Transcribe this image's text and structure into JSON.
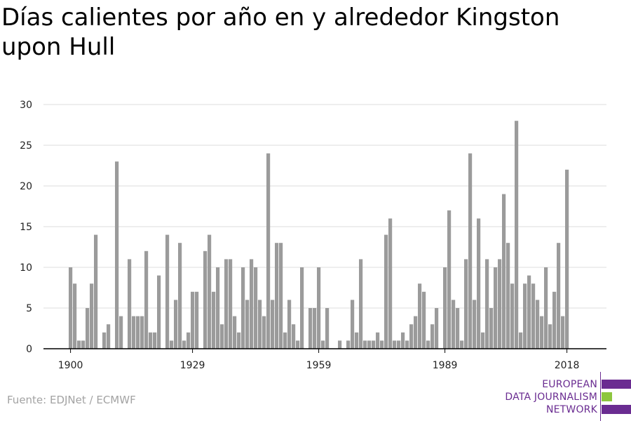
{
  "title": "Días calientes por año en y alrededor Kingston upon Hull",
  "source": "Fuente: EDJNet / ECMWF",
  "logo": {
    "lines": [
      "EUROPEAN",
      "DATA JOURNALISM",
      "NETWORK"
    ],
    "colors": {
      "purple": "#6a2c91",
      "green": "#8dc63f"
    }
  },
  "colors": {
    "bar": "#9b9b9b",
    "grid": "#dddddd",
    "axis": "#000000"
  },
  "chart_data": {
    "type": "bar",
    "title": "Días calientes por año en y alrededor Kingston upon Hull",
    "xlabel": "",
    "ylabel": "",
    "ylim": [
      0,
      30
    ],
    "yticks": [
      0,
      5,
      10,
      15,
      20,
      25,
      30
    ],
    "xticks": [
      1900,
      1929,
      1959,
      1989,
      2018
    ],
    "grid": true,
    "x": [
      1900,
      1901,
      1902,
      1903,
      1904,
      1905,
      1906,
      1907,
      1908,
      1909,
      1910,
      1911,
      1912,
      1913,
      1914,
      1915,
      1916,
      1917,
      1918,
      1919,
      1920,
      1921,
      1922,
      1923,
      1924,
      1925,
      1926,
      1927,
      1928,
      1929,
      1930,
      1931,
      1932,
      1933,
      1934,
      1935,
      1936,
      1937,
      1938,
      1939,
      1940,
      1941,
      1942,
      1943,
      1944,
      1945,
      1946,
      1947,
      1948,
      1949,
      1950,
      1951,
      1952,
      1953,
      1954,
      1955,
      1956,
      1957,
      1958,
      1959,
      1960,
      1961,
      1962,
      1963,
      1964,
      1965,
      1966,
      1967,
      1968,
      1969,
      1970,
      1971,
      1972,
      1973,
      1974,
      1975,
      1976,
      1977,
      1978,
      1979,
      1980,
      1981,
      1982,
      1983,
      1984,
      1985,
      1986,
      1987,
      1988,
      1989,
      1990,
      1991,
      1992,
      1993,
      1994,
      1995,
      1996,
      1997,
      1998,
      1999,
      2000,
      2001,
      2002,
      2003,
      2004,
      2005,
      2006,
      2007,
      2008,
      2009,
      2010,
      2011,
      2012,
      2013,
      2014,
      2015,
      2016,
      2017,
      2018
    ],
    "values": [
      10,
      8,
      1,
      1,
      5,
      8,
      14,
      0,
      2,
      3,
      0,
      23,
      4,
      0,
      11,
      4,
      4,
      4,
      12,
      2,
      2,
      9,
      0,
      14,
      1,
      6,
      13,
      1,
      2,
      7,
      7,
      0,
      12,
      14,
      7,
      10,
      3,
      11,
      11,
      4,
      2,
      10,
      6,
      11,
      10,
      6,
      4,
      24,
      6,
      13,
      13,
      2,
      6,
      3,
      1,
      10,
      0,
      5,
      5,
      10,
      1,
      5,
      0,
      0,
      1,
      0,
      1,
      6,
      2,
      11,
      1,
      1,
      1,
      2,
      1,
      14,
      16,
      1,
      1,
      2,
      1,
      3,
      4,
      8,
      7,
      1,
      3,
      5,
      0,
      10,
      17,
      6,
      5,
      1,
      11,
      24,
      6,
      16,
      2,
      11,
      5,
      10,
      11,
      19,
      13,
      8,
      28,
      2,
      8,
      9,
      8,
      6,
      4,
      10,
      3,
      7,
      13,
      4,
      22
    ]
  }
}
